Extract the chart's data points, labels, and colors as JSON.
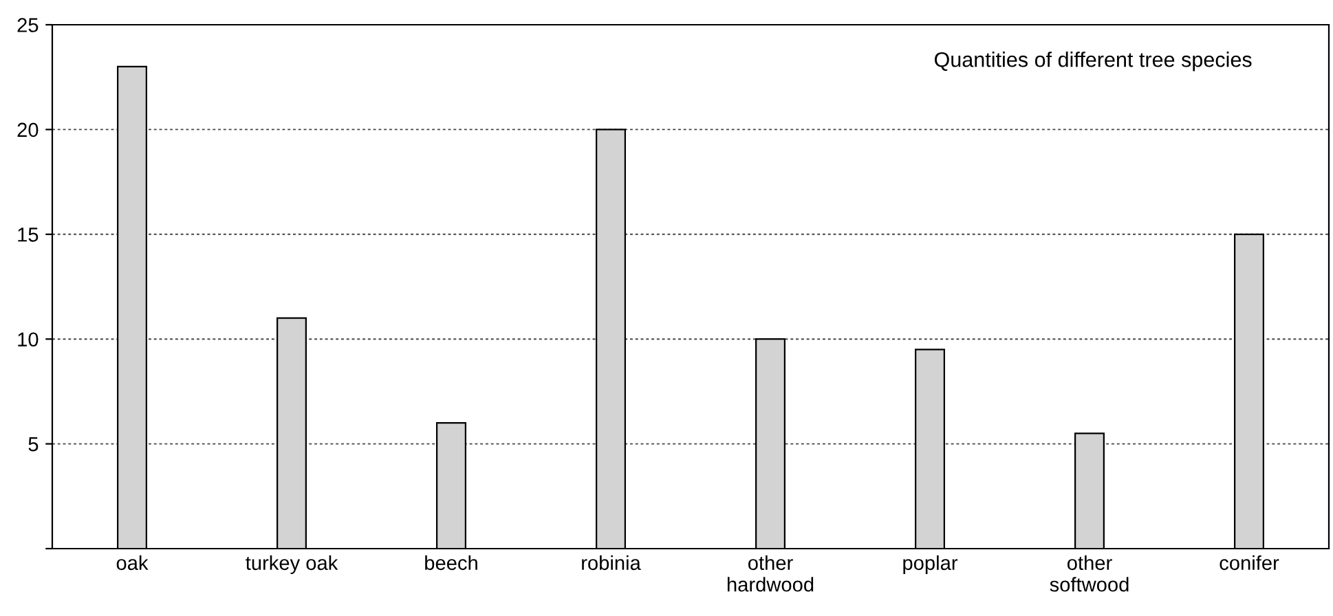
{
  "chart_data": {
    "type": "bar",
    "title": "Quantities of different tree species",
    "categories": [
      "oak",
      "turkey oak",
      "beech",
      "robinia",
      "other\nhardwood",
      "poplar",
      "other\nsoftwood",
      "conifer"
    ],
    "values": [
      23,
      11,
      6,
      20,
      10,
      9.5,
      5.5,
      15
    ],
    "color": "#d3d3d3",
    "ylim": [
      0,
      25
    ],
    "yticks": [
      {
        "value": 0,
        "label": null
      },
      5,
      10,
      15,
      20,
      25
    ],
    "grid": "y"
  }
}
